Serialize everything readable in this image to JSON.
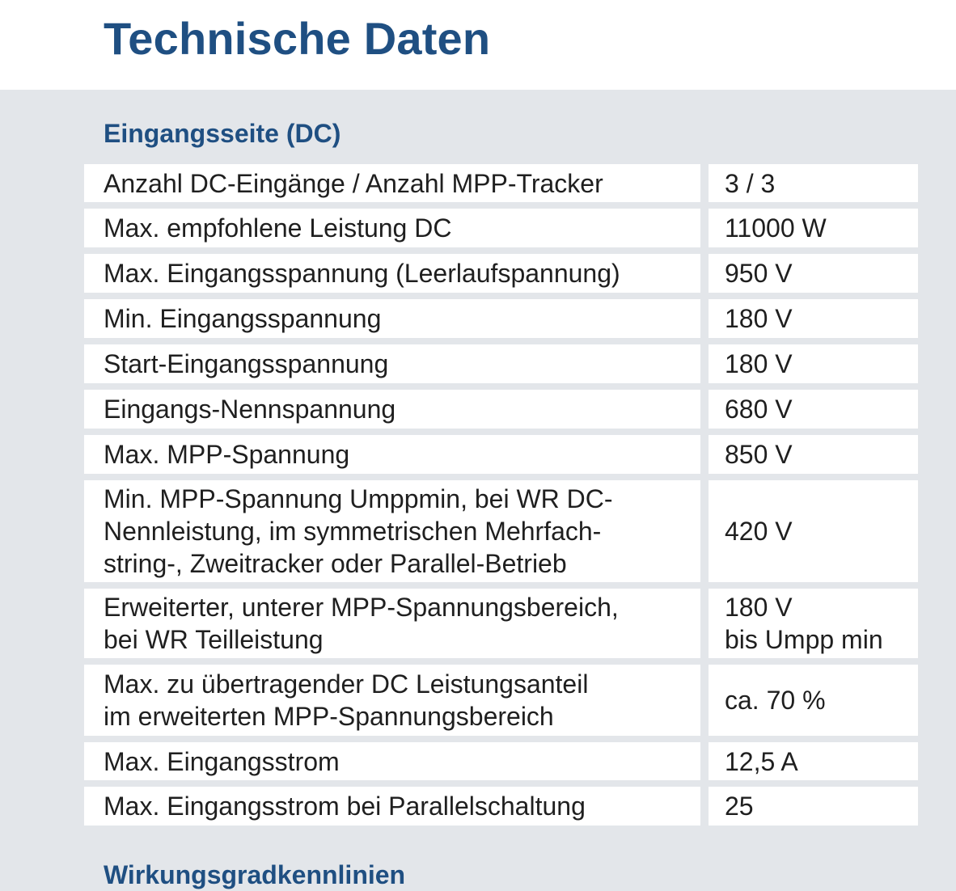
{
  "header": {
    "title": "Technische Daten"
  },
  "section": {
    "title": "Eingangsseite (DC)",
    "rows": [
      {
        "label": [
          "Anzahl DC-Eingänge / Anzahl MPP-Tracker"
        ],
        "value": [
          "3 / 3"
        ],
        "height": 47
      },
      {
        "label": [
          "Max. empfohlene Leistung DC"
        ],
        "value": [
          "11000 W"
        ],
        "height": 48
      },
      {
        "label": [
          "Max. Eingangsspannung (Leerlaufspannung)"
        ],
        "value": [
          "950 V"
        ],
        "height": 48
      },
      {
        "label": [
          "Min. Eingangsspannung"
        ],
        "value": [
          "180 V"
        ],
        "height": 48
      },
      {
        "label": [
          "Start-Eingangsspannung"
        ],
        "value": [
          "180 V"
        ],
        "height": 48
      },
      {
        "label": [
          "Eingangs-Nennspannung"
        ],
        "value": [
          "680 V"
        ],
        "height": 48
      },
      {
        "label": [
          "Max. MPP-Spannung"
        ],
        "value": [
          "850 V"
        ],
        "height": 48
      },
      {
        "label": [
          "Min. MPP-Spannung Umppmin, bei WR DC-",
          "Nennleistung, im symmetrischen Mehrfach-",
          "string-, Zweitracker oder Parallel-Betrieb"
        ],
        "value": [
          "420 V"
        ],
        "height": 126
      },
      {
        "label": [
          "Erweiterter, unterer MPP-Spannungsbereich,",
          "bei WR Teilleistung"
        ],
        "value": [
          "180 V",
          "bis Umpp min"
        ],
        "height": 86
      },
      {
        "label": [
          "Max. zu übertragender DC Leistungsanteil",
          "im erweiterten MPP-Spannungsbereich"
        ],
        "value": [
          "ca. 70 %"
        ],
        "height": 88
      },
      {
        "label": [
          "Max. Eingangsstrom"
        ],
        "value": [
          "12,5 A"
        ],
        "height": 47
      },
      {
        "label": [
          "Max. Eingangsstrom bei Parallelschaltung"
        ],
        "value": [
          "25"
        ],
        "height": 48
      }
    ]
  },
  "next_section": {
    "title": "Wirkungsgradkennlinien"
  }
}
